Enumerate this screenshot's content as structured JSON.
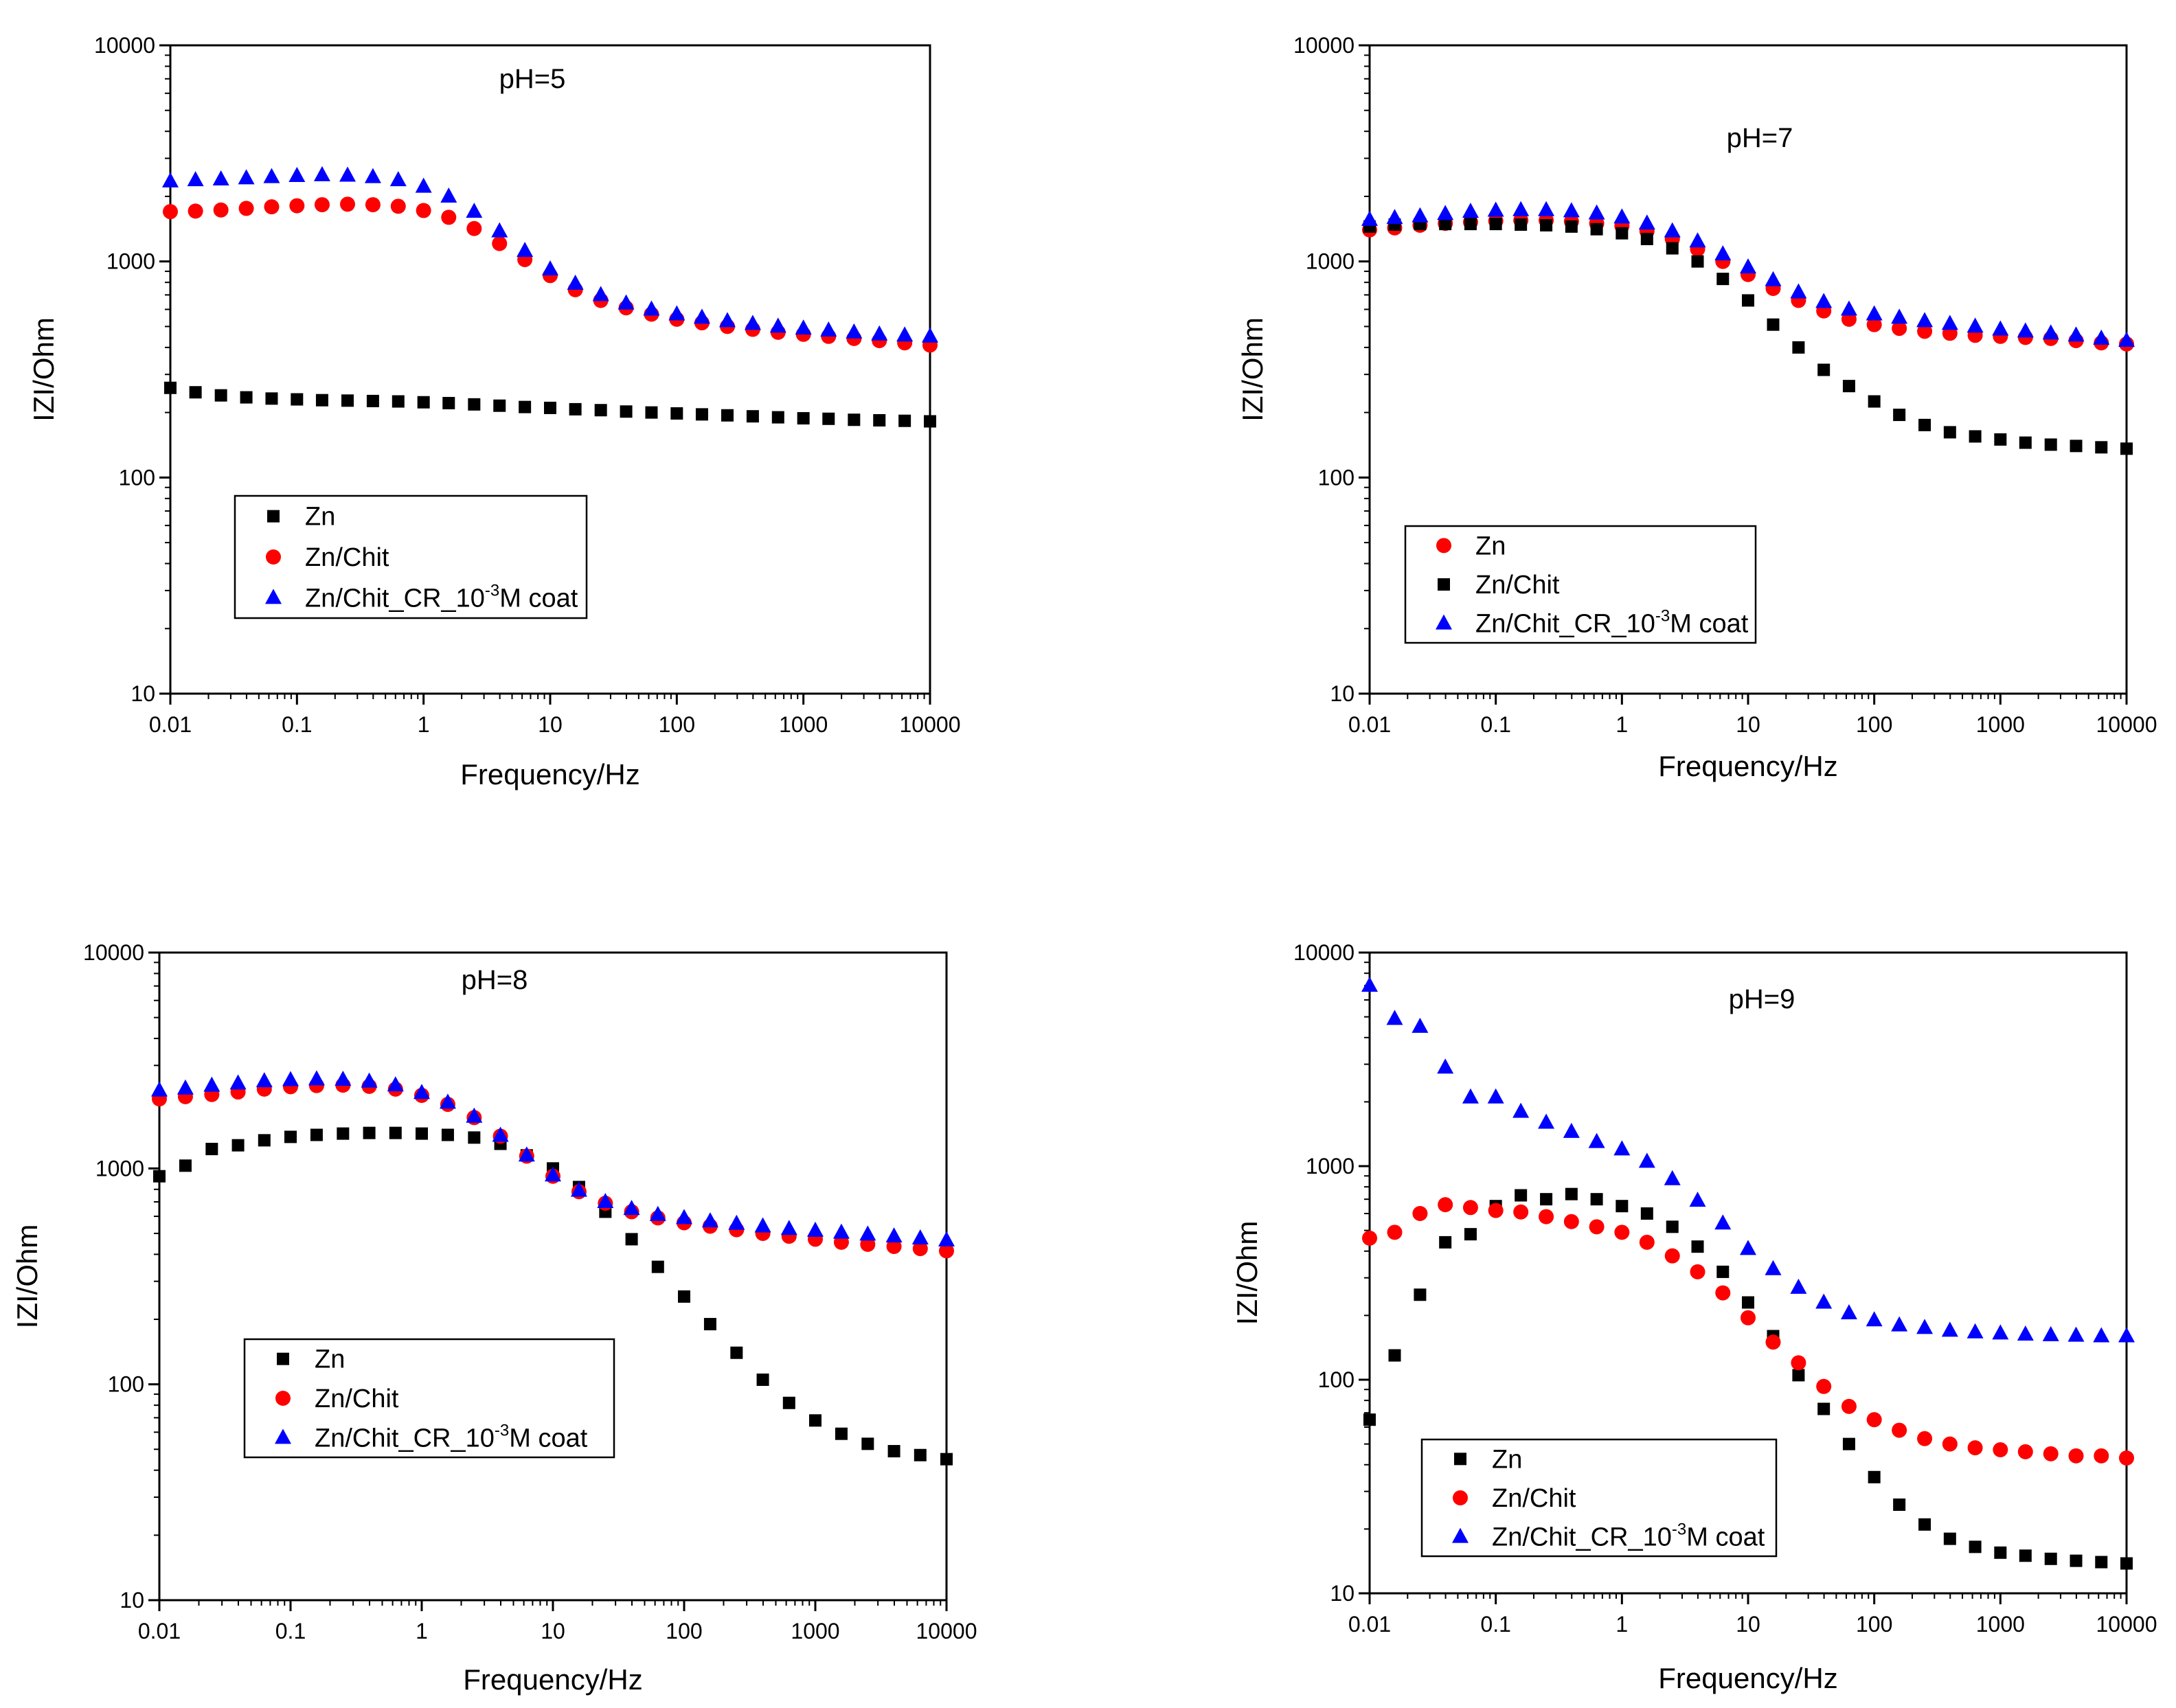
{
  "chart_data": [
    {
      "type": "scatter",
      "title": "pH=5",
      "xlabel": "Frequency/Hz",
      "ylabel": "IZI/Ohm",
      "xscale": "log",
      "yscale": "log",
      "xlim": [
        0.01,
        10000
      ],
      "ylim": [
        10,
        10000
      ],
      "xticks": [
        "0.01",
        "0.1",
        "1",
        "10",
        "100",
        "1000",
        "10000"
      ],
      "yticks": [
        "10",
        "100",
        "1000",
        "10000"
      ],
      "legend_position": "lower-left",
      "series": [
        {
          "name": "Zn",
          "marker": "square",
          "color": "#000000",
          "label_parts": [
            "Zn",
            "",
            ""
          ],
          "x": [
            0.01,
            0.0158,
            0.0251,
            0.0398,
            0.0631,
            0.1,
            0.158,
            0.251,
            0.398,
            0.631,
            1,
            1.58,
            2.51,
            3.98,
            6.31,
            10,
            15.8,
            25.1,
            39.8,
            63.1,
            100,
            158,
            251,
            398,
            631,
            1000,
            1580,
            2510,
            3980,
            6310,
            10000
          ],
          "values": [
            260,
            248,
            240,
            235,
            232,
            230,
            228,
            227,
            226,
            225,
            223,
            221,
            218,
            215,
            212,
            210,
            207,
            205,
            202,
            200,
            198,
            196,
            194,
            192,
            190,
            188,
            187,
            185,
            184,
            183,
            182
          ]
        },
        {
          "name": "Zn/Chit",
          "marker": "circle",
          "color": "#ff0000",
          "label_parts": [
            "Zn/Chit",
            "",
            ""
          ],
          "x": [
            0.01,
            0.0158,
            0.0251,
            0.0398,
            0.0631,
            0.1,
            0.158,
            0.251,
            0.398,
            0.631,
            1,
            1.58,
            2.51,
            3.98,
            6.31,
            10,
            15.8,
            25.1,
            39.8,
            63.1,
            100,
            158,
            251,
            398,
            631,
            1000,
            1580,
            2510,
            3980,
            6310,
            10000
          ],
          "values": [
            1700,
            1710,
            1730,
            1760,
            1790,
            1810,
            1830,
            1840,
            1830,
            1800,
            1720,
            1600,
            1420,
            1210,
            1020,
            860,
            740,
            660,
            610,
            570,
            540,
            520,
            500,
            485,
            470,
            460,
            450,
            440,
            430,
            420,
            410
          ]
        },
        {
          "name": "Zn/Chit_CR_10-3M coat",
          "marker": "triangle",
          "color": "#0000ff",
          "label_parts": [
            "Zn/Chit_CR_10",
            "-3",
            "M coat"
          ],
          "x": [
            0.01,
            0.0158,
            0.0251,
            0.0398,
            0.0631,
            0.1,
            0.158,
            0.251,
            0.398,
            0.631,
            1,
            1.58,
            2.51,
            3.98,
            6.31,
            10,
            15.8,
            25.1,
            39.8,
            63.1,
            100,
            158,
            251,
            398,
            631,
            1000,
            1580,
            2510,
            3980,
            6310,
            10000
          ],
          "values": [
            2350,
            2380,
            2400,
            2430,
            2460,
            2490,
            2510,
            2500,
            2460,
            2380,
            2220,
            2000,
            1700,
            1380,
            1120,
            920,
            790,
            700,
            640,
            600,
            570,
            550,
            530,
            515,
            500,
            490,
            480,
            470,
            460,
            455,
            450
          ]
        }
      ]
    },
    {
      "type": "scatter",
      "title": "pH=7",
      "xlabel": "Frequency/Hz",
      "ylabel": "IZI/Ohm",
      "xscale": "log",
      "yscale": "log",
      "xlim": [
        0.01,
        10000
      ],
      "ylim": [
        10,
        10000
      ],
      "xticks": [
        "0.01",
        "0.1",
        "1",
        "10",
        "100",
        "1000",
        "10000"
      ],
      "yticks": [
        "10",
        "100",
        "1000",
        "10000"
      ],
      "legend_position": "lower-left",
      "series": [
        {
          "name": "Zn",
          "marker": "circle",
          "color": "#ff0000",
          "label_parts": [
            "Zn",
            "",
            ""
          ],
          "x": [
            0.01,
            0.0158,
            0.0251,
            0.0398,
            0.0631,
            0.1,
            0.158,
            0.251,
            0.398,
            0.631,
            1,
            1.58,
            2.51,
            3.98,
            6.31,
            10,
            15.8,
            25.1,
            39.8,
            63.1,
            100,
            158,
            251,
            398,
            631,
            1000,
            1580,
            2510,
            3980,
            6310,
            10000
          ],
          "values": [
            1400,
            1430,
            1470,
            1500,
            1520,
            1540,
            1550,
            1550,
            1530,
            1500,
            1460,
            1380,
            1270,
            1140,
            1000,
            870,
            750,
            660,
            590,
            540,
            510,
            490,
            475,
            465,
            455,
            450,
            445,
            440,
            430,
            420,
            415
          ]
        },
        {
          "name": "Zn/Chit",
          "marker": "square",
          "color": "#000000",
          "label_parts": [
            "Zn/Chit",
            "",
            ""
          ],
          "x": [
            0.01,
            0.0158,
            0.0251,
            0.0398,
            0.0631,
            0.1,
            0.158,
            0.251,
            0.398,
            0.631,
            1,
            1.58,
            2.51,
            3.98,
            6.31,
            10,
            15.8,
            25.1,
            39.8,
            63.1,
            100,
            158,
            251,
            398,
            631,
            1000,
            1580,
            2510,
            3980,
            6310,
            10000
          ],
          "values": [
            1450,
            1480,
            1490,
            1490,
            1490,
            1490,
            1480,
            1470,
            1450,
            1410,
            1350,
            1270,
            1150,
            1000,
            830,
            660,
            510,
            400,
            315,
            265,
            225,
            195,
            175,
            162,
            155,
            150,
            145,
            142,
            140,
            138,
            136
          ]
        },
        {
          "name": "Zn/Chit_CR_10-3M coat",
          "marker": "triangle",
          "color": "#0000ff",
          "label_parts": [
            "Zn/Chit_CR_10",
            "-3",
            "M coat"
          ],
          "x": [
            0.01,
            0.0158,
            0.0251,
            0.0398,
            0.0631,
            0.1,
            0.158,
            0.251,
            0.398,
            0.631,
            1,
            1.58,
            2.51,
            3.98,
            6.31,
            10,
            15.8,
            25.1,
            39.8,
            63.1,
            100,
            158,
            251,
            398,
            631,
            1000,
            1580,
            2510,
            3980,
            6310,
            10000
          ],
          "values": [
            1560,
            1590,
            1620,
            1660,
            1700,
            1720,
            1730,
            1730,
            1710,
            1670,
            1600,
            1500,
            1380,
            1240,
            1080,
            940,
            820,
            720,
            650,
            600,
            570,
            550,
            530,
            515,
            500,
            485,
            475,
            465,
            455,
            440,
            430
          ]
        }
      ]
    },
    {
      "type": "scatter",
      "title": "pH=8",
      "xlabel": "Frequency/Hz",
      "ylabel": "IZI/Ohm",
      "xscale": "log",
      "yscale": "log",
      "xlim": [
        0.01,
        10000
      ],
      "ylim": [
        10,
        10000
      ],
      "xticks": [
        "0.01",
        "0.1",
        "1",
        "10",
        "100",
        "1000",
        "10000"
      ],
      "yticks": [
        "10",
        "100",
        "1000",
        "10000"
      ],
      "legend_position": "lower-left",
      "series": [
        {
          "name": "Zn",
          "marker": "square",
          "color": "#000000",
          "label_parts": [
            "Zn",
            "",
            ""
          ],
          "x": [
            0.01,
            0.0158,
            0.0251,
            0.0398,
            0.0631,
            0.1,
            0.158,
            0.251,
            0.398,
            0.631,
            1,
            1.58,
            2.51,
            3.98,
            6.31,
            10,
            15.8,
            25.1,
            39.8,
            63.1,
            100,
            158,
            251,
            398,
            631,
            1000,
            1580,
            2510,
            3980,
            6310,
            10000
          ],
          "values": [
            920,
            1030,
            1230,
            1280,
            1350,
            1400,
            1430,
            1450,
            1460,
            1460,
            1450,
            1430,
            1390,
            1300,
            1150,
            1000,
            820,
            630,
            470,
            350,
            255,
            190,
            140,
            105,
            82,
            68,
            59,
            53,
            49,
            47,
            45
          ]
        },
        {
          "name": "Zn/Chit",
          "marker": "circle",
          "color": "#ff0000",
          "label_parts": [
            "Zn/Chit",
            "",
            ""
          ],
          "x": [
            0.01,
            0.0158,
            0.0251,
            0.0398,
            0.0631,
            0.1,
            0.158,
            0.251,
            0.398,
            0.631,
            1,
            1.58,
            2.51,
            3.98,
            6.31,
            10,
            15.8,
            25.1,
            39.8,
            63.1,
            100,
            158,
            251,
            398,
            631,
            1000,
            1580,
            2510,
            3980,
            6310,
            10000
          ],
          "values": [
            2100,
            2150,
            2200,
            2260,
            2330,
            2390,
            2420,
            2430,
            2400,
            2330,
            2180,
            1980,
            1720,
            1410,
            1140,
            920,
            780,
            690,
            630,
            590,
            560,
            540,
            520,
            500,
            485,
            470,
            455,
            445,
            435,
            425,
            415
          ]
        },
        {
          "name": "Zn/Chit_CR_10-3M coat",
          "marker": "triangle",
          "color": "#0000ff",
          "label_parts": [
            "Zn/Chit_CR_10",
            "-3",
            "M coat"
          ],
          "x": [
            0.01,
            0.0158,
            0.0251,
            0.0398,
            0.0631,
            0.1,
            0.158,
            0.251,
            0.398,
            0.631,
            1,
            1.58,
            2.51,
            3.98,
            6.31,
            10,
            15.8,
            25.1,
            39.8,
            63.1,
            100,
            158,
            251,
            398,
            631,
            1000,
            1580,
            2510,
            3980,
            6310,
            10000
          ],
          "values": [
            2300,
            2350,
            2420,
            2480,
            2540,
            2570,
            2590,
            2580,
            2530,
            2430,
            2240,
            2020,
            1740,
            1420,
            1150,
            930,
            790,
            700,
            650,
            610,
            590,
            570,
            555,
            540,
            525,
            515,
            505,
            495,
            485,
            475,
            465
          ]
        }
      ]
    },
    {
      "type": "scatter",
      "title": "pH=9",
      "xlabel": "Frequency/Hz",
      "ylabel": "IZI/Ohm",
      "xscale": "log",
      "yscale": "log",
      "xlim": [
        0.01,
        10000
      ],
      "ylim": [
        10,
        10000
      ],
      "xticks": [
        "0.01",
        "0.1",
        "1",
        "10",
        "100",
        "1000",
        "10000"
      ],
      "yticks": [
        "10",
        "100",
        "1000",
        "10000"
      ],
      "legend_position": "lower-left",
      "series": [
        {
          "name": "Zn",
          "marker": "square",
          "color": "#000000",
          "label_parts": [
            "Zn",
            "",
            ""
          ],
          "x": [
            0.01,
            0.0158,
            0.0251,
            0.0398,
            0.0631,
            0.1,
            0.158,
            0.251,
            0.398,
            0.631,
            1,
            1.58,
            2.51,
            3.98,
            6.31,
            10,
            15.8,
            25.1,
            39.8,
            63.1,
            100,
            158,
            251,
            398,
            631,
            1000,
            1580,
            2510,
            3980,
            6310,
            10000
          ],
          "values": [
            65,
            130,
            250,
            440,
            480,
            650,
            730,
            700,
            740,
            700,
            650,
            600,
            520,
            420,
            320,
            230,
            160,
            105,
            73,
            50,
            35,
            26,
            21,
            18,
            16.5,
            15.5,
            15,
            14.5,
            14.2,
            14,
            13.8
          ]
        },
        {
          "name": "Zn/Chit",
          "marker": "circle",
          "color": "#ff0000",
          "label_parts": [
            "Zn/Chit",
            "",
            ""
          ],
          "x": [
            0.01,
            0.0158,
            0.0251,
            0.0398,
            0.0631,
            0.1,
            0.158,
            0.251,
            0.398,
            0.631,
            1,
            1.58,
            2.51,
            3.98,
            6.31,
            10,
            15.8,
            25.1,
            39.8,
            63.1,
            100,
            158,
            251,
            398,
            631,
            1000,
            1580,
            2510,
            3980,
            6310,
            10000
          ],
          "values": [
            460,
            490,
            600,
            660,
            640,
            620,
            610,
            580,
            550,
            520,
            490,
            440,
            380,
            320,
            255,
            195,
            150,
            120,
            93,
            75,
            65,
            58,
            53,
            50,
            48,
            47,
            46,
            45,
            44,
            44,
            43
          ]
        },
        {
          "name": "Zn/Chit_CR_10-3M coat",
          "marker": "triangle",
          "color": "#0000ff",
          "label_parts": [
            "Zn/Chit_CR_10",
            "-3",
            "M coat"
          ],
          "x": [
            0.01,
            0.0158,
            0.0251,
            0.0398,
            0.0631,
            0.1,
            0.158,
            0.251,
            0.398,
            0.631,
            1,
            1.58,
            2.51,
            3.98,
            6.31,
            10,
            15.8,
            25.1,
            39.8,
            63.1,
            100,
            158,
            251,
            398,
            631,
            1000,
            1580,
            2510,
            3980,
            6310,
            10000
          ],
          "values": [
            7000,
            4900,
            4500,
            2900,
            2100,
            2100,
            1800,
            1600,
            1450,
            1300,
            1200,
            1050,
            870,
            690,
            540,
            410,
            330,
            270,
            230,
            205,
            190,
            180,
            175,
            170,
            167,
            165,
            163,
            162,
            161,
            160,
            160
          ]
        }
      ]
    }
  ]
}
